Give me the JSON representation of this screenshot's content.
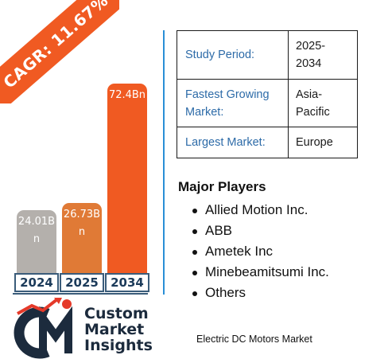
{
  "cagr_label": "CAGR: 11.67%",
  "chart_data": {
    "type": "bar",
    "categories": [
      "2024",
      "2025",
      "2034"
    ],
    "values": [
      24.01,
      26.73,
      72.4
    ],
    "value_labels": [
      "24.01Bn",
      "26.73Bn",
      "72.4Bn"
    ],
    "colors": [
      "#b4b0ac",
      "#e07a36",
      "#f05a22"
    ],
    "title": "",
    "xlabel": "",
    "ylabel": "",
    "ylim": [
      0,
      72.4
    ]
  },
  "info": [
    {
      "key": "Study Period:",
      "value": "2025-2034"
    },
    {
      "key": "Fastest Growing Market:",
      "value": "Asia-Pacific"
    },
    {
      "key": "Largest Market:",
      "value": "Europe"
    }
  ],
  "players_title": "Major Players",
  "players": [
    "Allied Motion Inc.",
    "ABB",
    "Ametek Inc",
    "Minebeamitsumi Inc.",
    "Others"
  ],
  "logo": {
    "line1": "Custom",
    "line2": "Market",
    "line3": "Insights"
  },
  "caption": "Electric DC Motors Market"
}
